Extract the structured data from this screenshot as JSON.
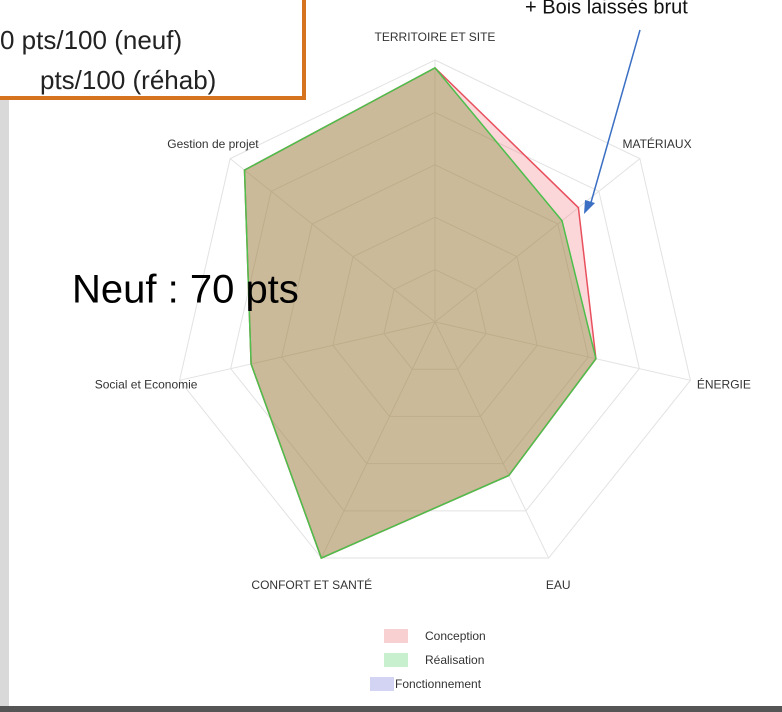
{
  "chart_data": {
    "type": "radar",
    "categories": [
      "TERRITOIRE ET SITE",
      "MATÉRIAUX",
      "ÉNERGIE",
      "EAU",
      "CONFORT ET SANTÉ",
      "Social et Economie",
      "Gestion de projet"
    ],
    "rlim": [
      0,
      100
    ],
    "rticks": [
      20,
      40,
      60,
      80,
      100
    ],
    "grid": true,
    "series": [
      {
        "name": "Conception",
        "color": "#e8505e",
        "values": [
          97,
          70,
          63,
          65,
          100,
          72,
          93
        ]
      },
      {
        "name": "Réalisation",
        "color": "#4cbf4c",
        "values": [
          97,
          62,
          63,
          65,
          100,
          72,
          93
        ]
      },
      {
        "name": "Fonctionnement",
        "color": "#9a9ae0",
        "values": [
          null,
          null,
          null,
          null,
          null,
          null,
          null
        ]
      }
    ]
  },
  "annotations": {
    "arrow_note": "+ Bois laissés brut",
    "score_note": "Neuf : 70 pts",
    "box_lines": [
      "0 pts/100 (neuf)",
      "pts/100 (réhab)"
    ]
  }
}
